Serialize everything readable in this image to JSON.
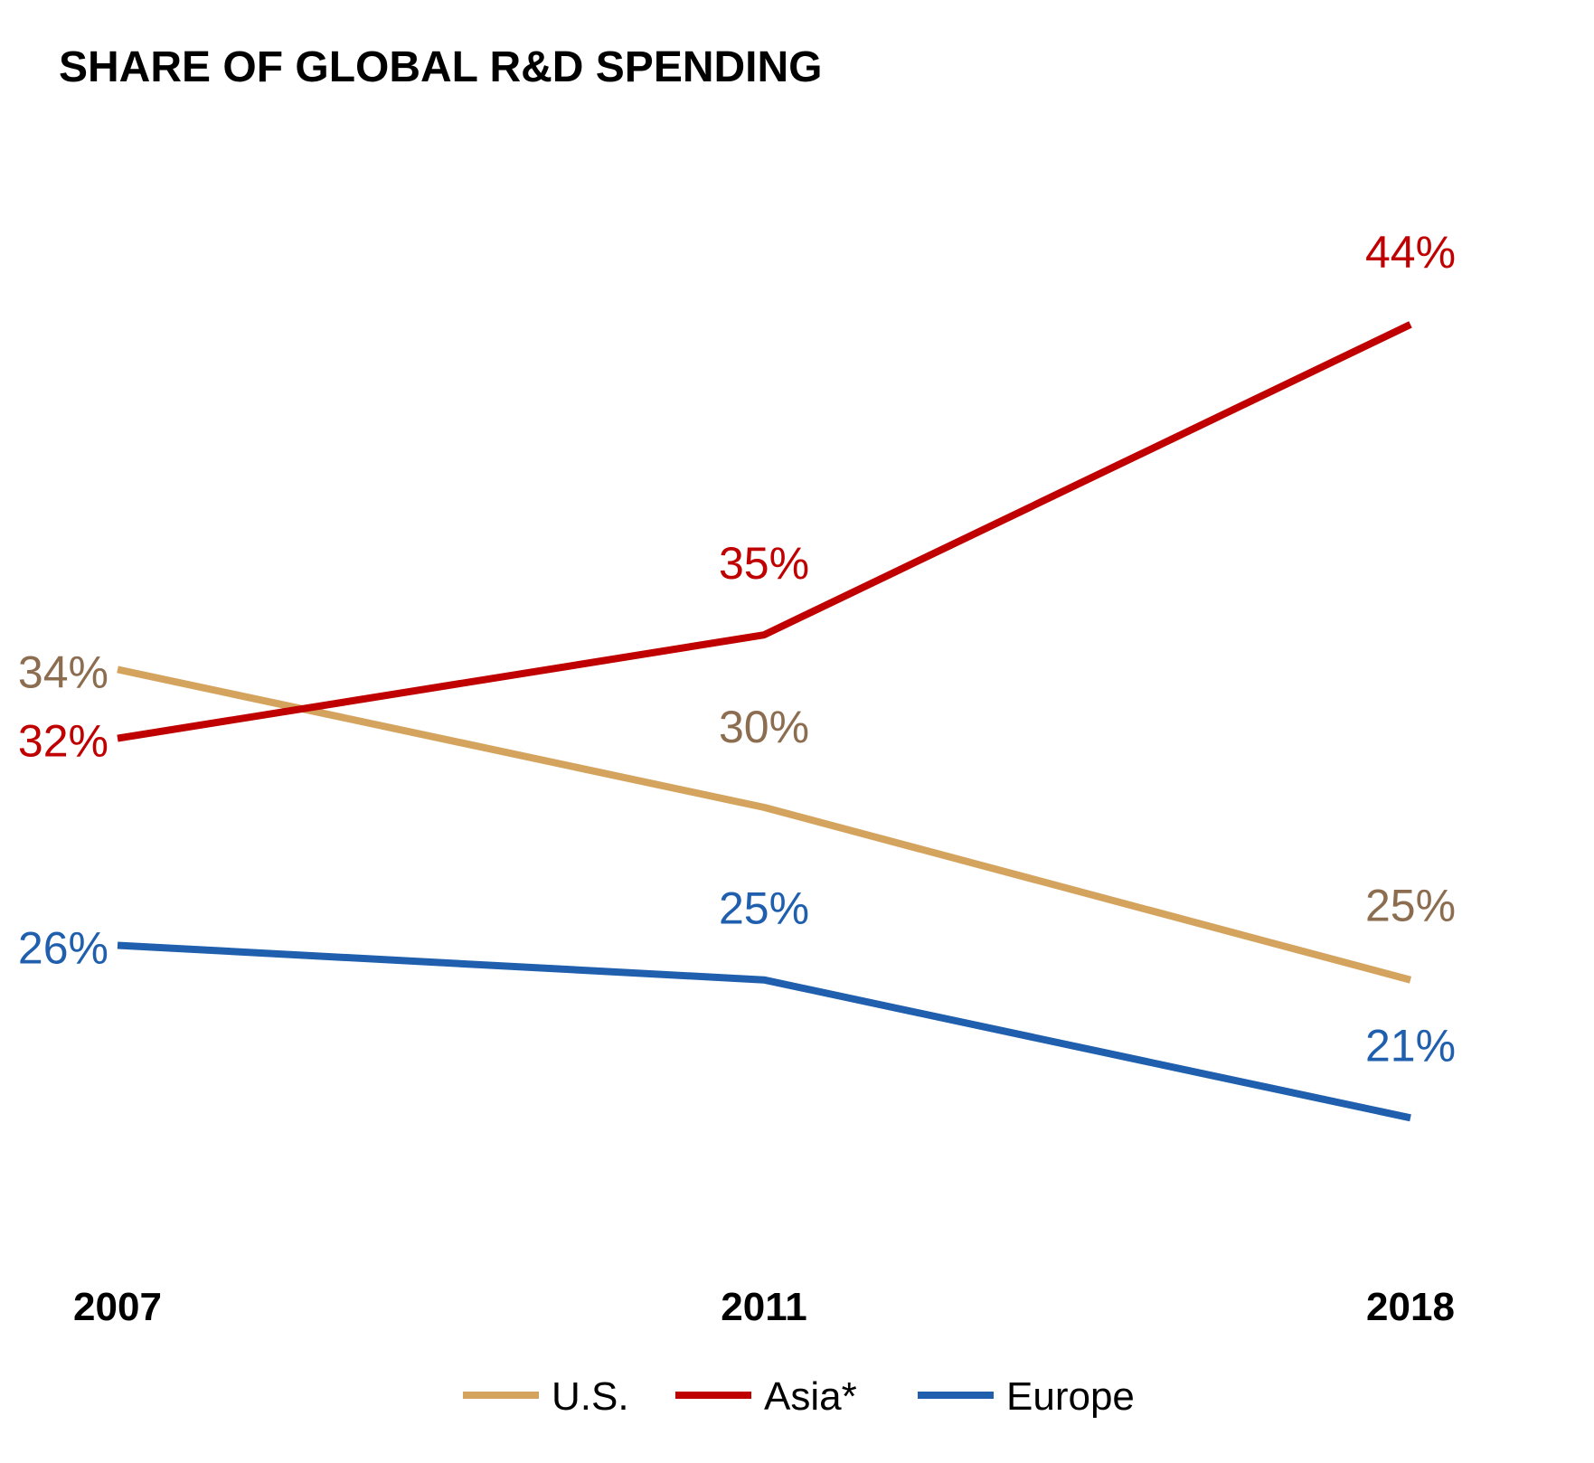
{
  "chart_data": {
    "type": "line",
    "title": "SHARE OF GLOBAL R&D SPENDING",
    "xlabel": "",
    "ylabel": "",
    "categories": [
      "2007",
      "2011",
      "2018"
    ],
    "series": [
      {
        "name": "U.S.",
        "values": [
          34,
          30,
          25
        ],
        "labels": [
          "34%",
          "30%",
          "25%"
        ],
        "color": "#d4a45f",
        "label_color": "#8c6d50"
      },
      {
        "name": "Asia*",
        "values": [
          32,
          35,
          44
        ],
        "labels": [
          "32%",
          "35%",
          "44%"
        ],
        "color": "#c00000",
        "label_color": "#c00000"
      },
      {
        "name": "Europe",
        "values": [
          26,
          25,
          21
        ],
        "labels": [
          "26%",
          "25%",
          "21%"
        ],
        "color": "#1f5fae",
        "label_color": "#1f5fae"
      }
    ],
    "ylim": [
      16,
      50
    ],
    "grid": false,
    "axes_visible": false,
    "legend_position": "bottom"
  }
}
